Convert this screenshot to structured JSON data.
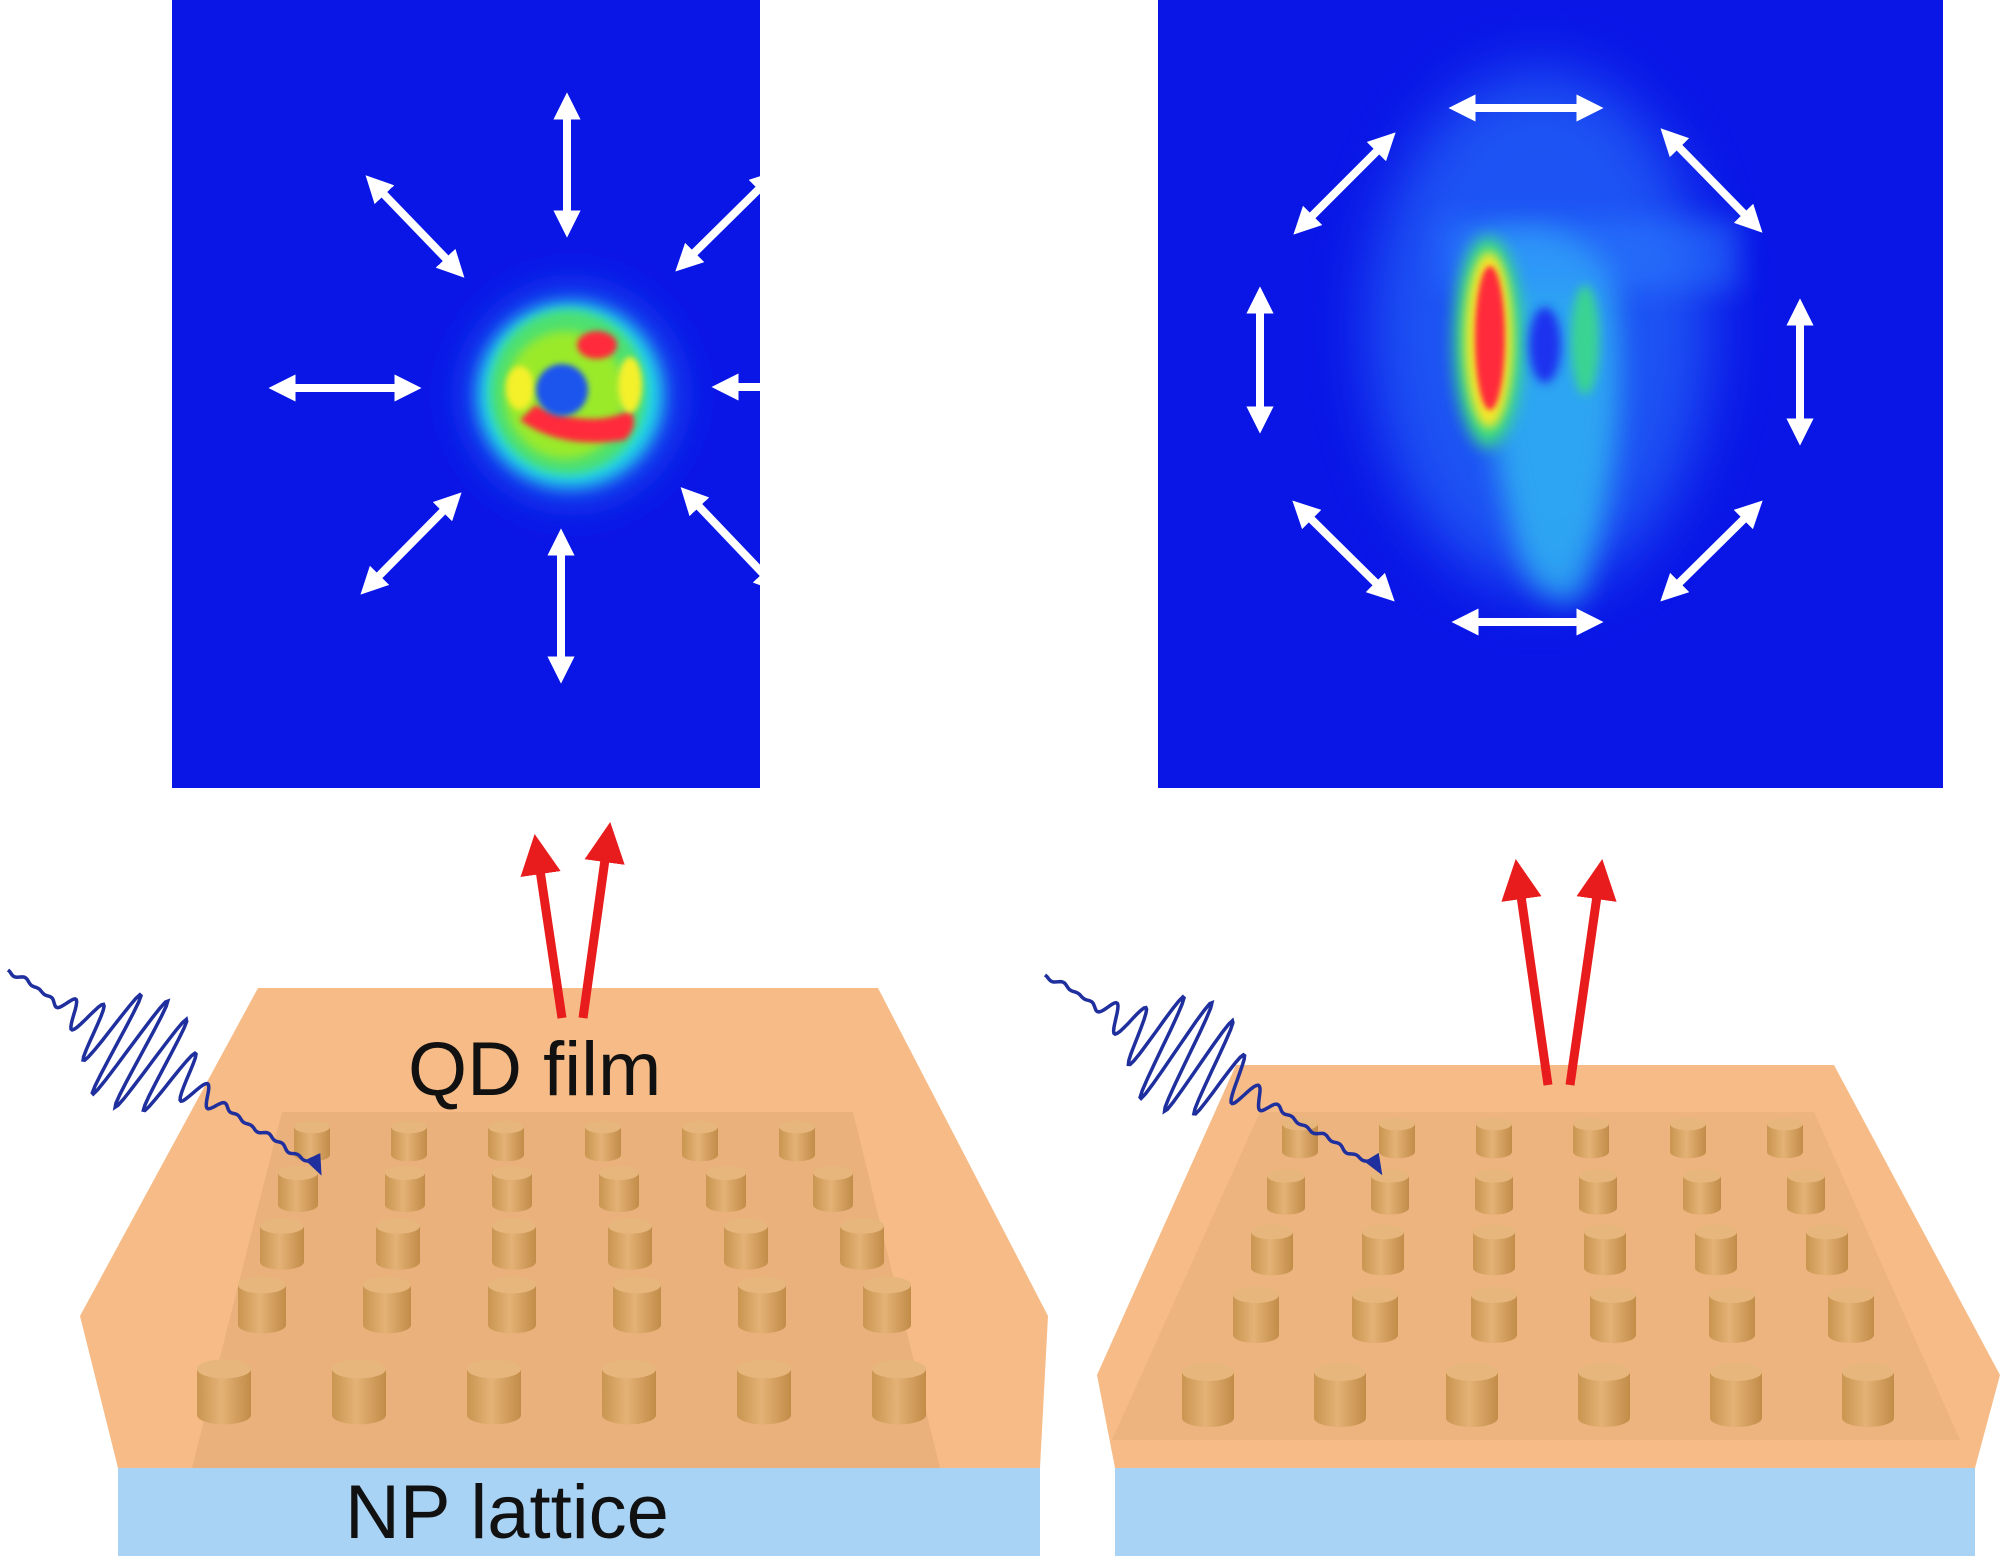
{
  "labels": {
    "qd_film": "QD film",
    "np_lattice": "NP lattice"
  },
  "colors": {
    "map_background": "#0a16e6",
    "film": "#f6bb86",
    "film_inner": "#e9b07c",
    "pillar": "#deaa68",
    "substrate": "#a9d3f5",
    "emission_arrow": "#e81c1c",
    "excitation_wave": "#1f2f9e",
    "polarization_arrow": "#ffffff"
  },
  "panels": [
    {
      "name": "left",
      "polarization": "radial",
      "emission_pattern": "donut"
    },
    {
      "name": "right",
      "polarization": "azimuthal",
      "emission_pattern": "split-lobes"
    }
  ]
}
